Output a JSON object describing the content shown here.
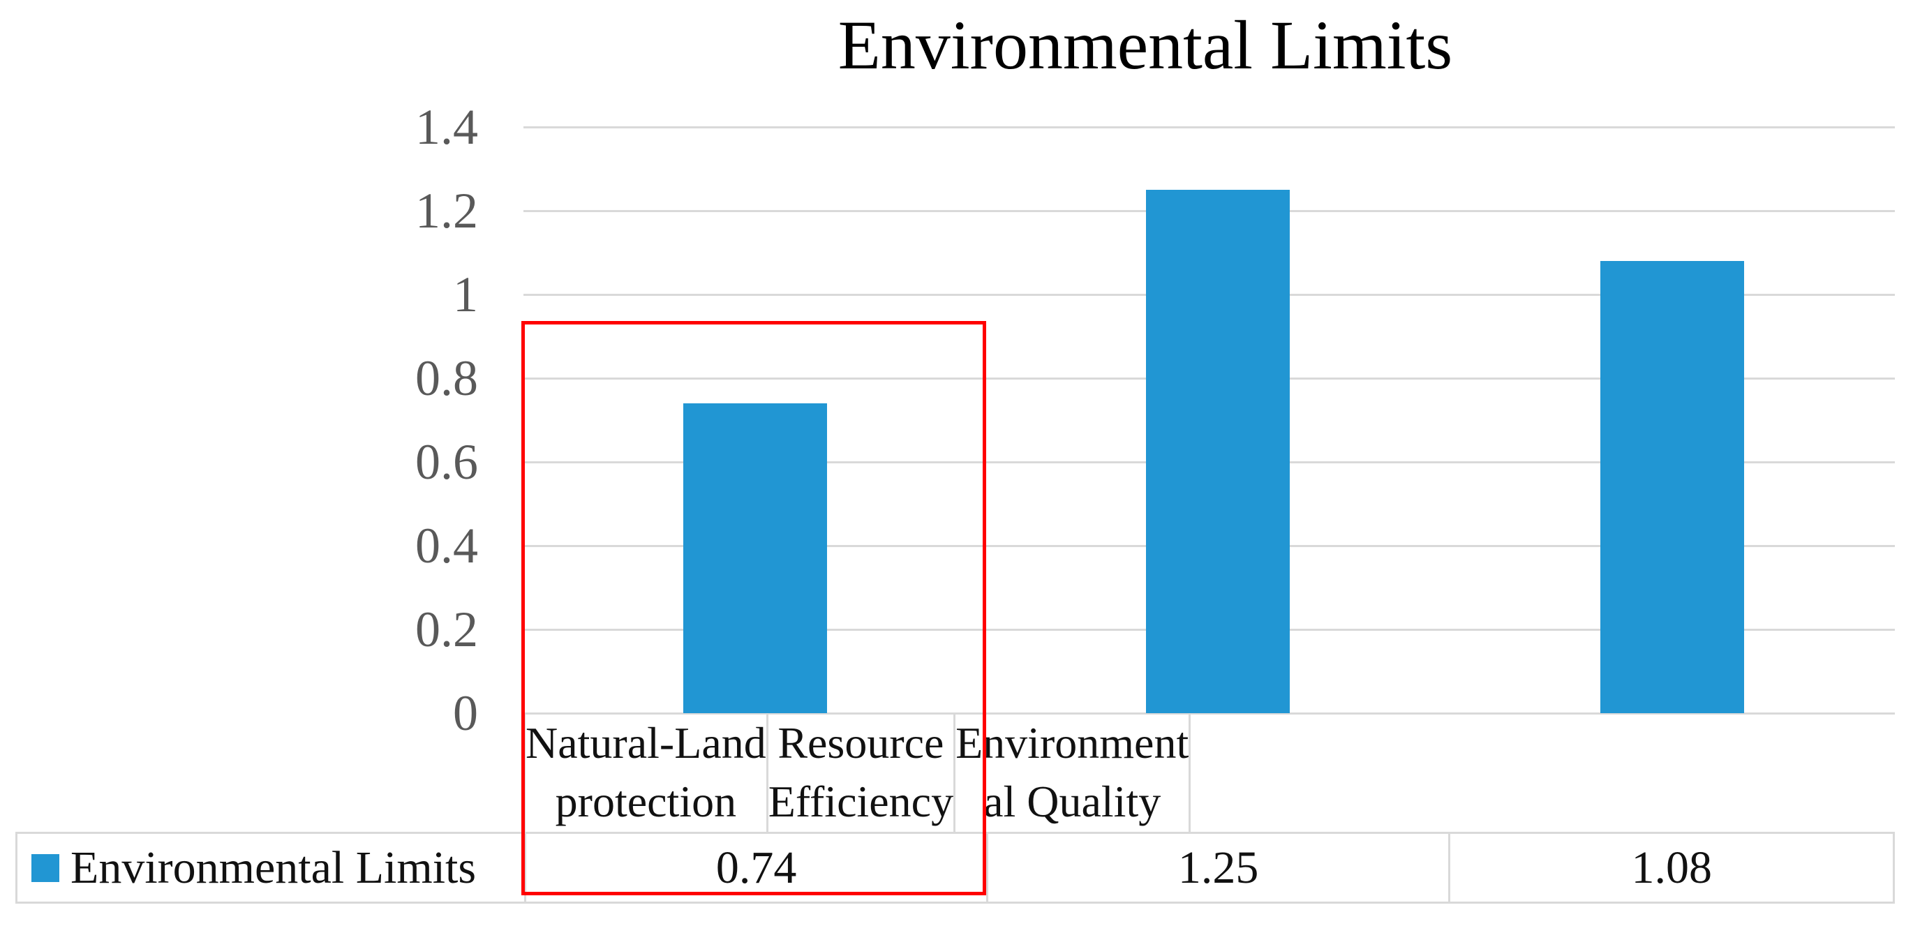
{
  "title": "Environmental Limits",
  "chart_data": {
    "type": "bar",
    "title": "Environmental Limits",
    "categories": [
      "Natural-Land protection",
      "Resource Efficiency",
      "Environmental Quality"
    ],
    "category_display_lines": [
      [
        "Natural-Land",
        "protection"
      ],
      [
        "Resource",
        "Efficiency"
      ],
      [
        "Environment",
        "al Quality"
      ]
    ],
    "series": [
      {
        "name": "Environmental Limits",
        "values": [
          0.74,
          1.25,
          1.08
        ]
      }
    ],
    "values": [
      0.74,
      1.25,
      1.08
    ],
    "ylim": [
      0,
      1.4
    ],
    "ytick_labels": [
      "1.4",
      "1.2",
      "1",
      "0.8",
      "0.6",
      "0.4",
      "0.2",
      "0"
    ],
    "ytick_values": [
      1.4,
      1.2,
      1.0,
      0.8,
      0.6,
      0.4,
      0.2,
      0
    ],
    "grid": true,
    "legend_position": "bottom-table",
    "bar_color": "#2196D3",
    "gridline_color": "#D9D9D9",
    "axis_label_color": "#595959",
    "text_color": "#111111",
    "highlight_box_color": "#FF0000",
    "highlighted_category": "Natural-Land protection"
  },
  "data_table": {
    "legend_marker_color": "#2196D3",
    "row_label": "Environmental Limits",
    "cell_values": [
      "0.74",
      "1.25",
      "1.08"
    ]
  }
}
